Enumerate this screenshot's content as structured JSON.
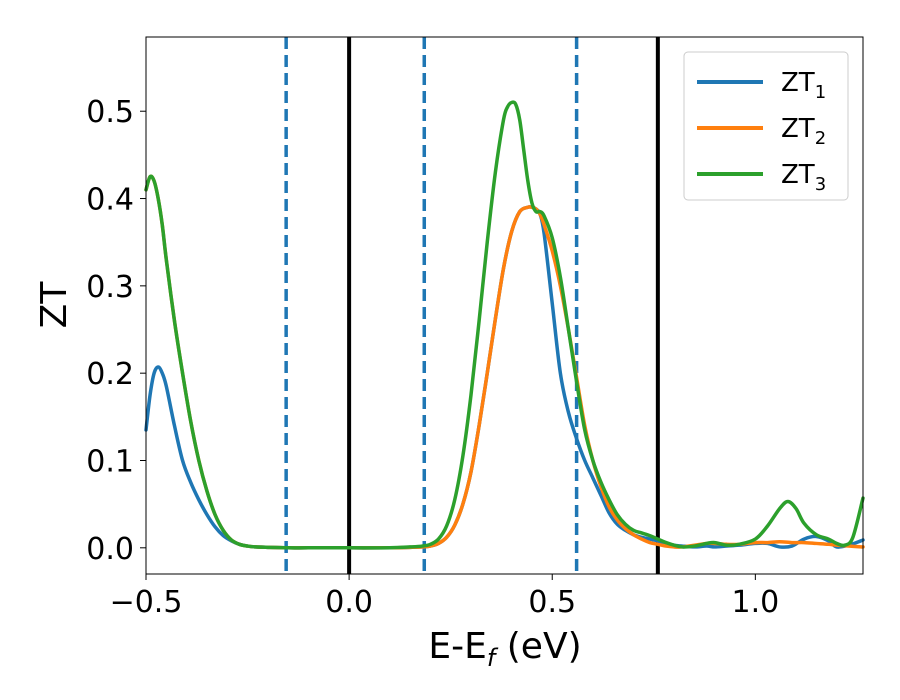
{
  "chart_data": {
    "type": "line",
    "xlabel_main": "E-E",
    "xlabel_sub": "f",
    "xlabel_unit": " (eV)",
    "ylabel": "ZT",
    "xlim": [
      -0.5,
      1.265
    ],
    "ylim": [
      -0.03,
      0.585
    ],
    "grid": false,
    "legend_placement": "top-right",
    "x_ticks": [
      {
        "value": -0.5,
        "label": "−0.5"
      },
      {
        "value": 0.0,
        "label": "0.0"
      },
      {
        "value": 0.5,
        "label": "0.5"
      },
      {
        "value": 1.0,
        "label": "1.0"
      }
    ],
    "y_ticks": [
      {
        "value": 0.0,
        "label": "0.0"
      },
      {
        "value": 0.1,
        "label": "0.1"
      },
      {
        "value": 0.2,
        "label": "0.2"
      },
      {
        "value": 0.3,
        "label": "0.3"
      },
      {
        "value": 0.4,
        "label": "0.4"
      },
      {
        "value": 0.5,
        "label": "0.5"
      }
    ],
    "vlines": [
      {
        "x": 0.0,
        "style": "solid",
        "color": "#000000"
      },
      {
        "x": 0.76,
        "style": "solid",
        "color": "#000000"
      },
      {
        "x": -0.155,
        "style": "dashed",
        "color": "#1f77b4"
      },
      {
        "x": 0.185,
        "style": "dashed",
        "color": "#1f77b4"
      },
      {
        "x": 0.56,
        "style": "dashed",
        "color": "#1f77b4"
      }
    ],
    "series": [
      {
        "name": "ZT",
        "sub": "1",
        "color": "#1f77b4",
        "x": [
          -0.5,
          -0.49,
          -0.48,
          -0.47,
          -0.46,
          -0.45,
          -0.43,
          -0.41,
          -0.39,
          -0.37,
          -0.35,
          -0.33,
          -0.31,
          -0.29,
          -0.27,
          -0.25,
          -0.23,
          -0.2,
          -0.15,
          -0.1,
          0.0,
          0.1,
          0.15,
          0.18,
          0.2,
          0.22,
          0.24,
          0.26,
          0.28,
          0.3,
          0.32,
          0.34,
          0.36,
          0.38,
          0.4,
          0.42,
          0.44,
          0.45,
          0.46,
          0.47,
          0.48,
          0.5,
          0.52,
          0.54,
          0.56,
          0.58,
          0.6,
          0.62,
          0.64,
          0.66,
          0.68,
          0.7,
          0.72,
          0.74,
          0.76,
          0.78,
          0.8,
          0.82,
          0.85,
          0.88,
          0.9,
          0.93,
          0.96,
          1.0,
          1.03,
          1.06,
          1.09,
          1.12,
          1.15,
          1.18,
          1.2,
          1.23,
          1.26,
          1.265
        ],
        "y": [
          0.135,
          0.175,
          0.2,
          0.207,
          0.2,
          0.185,
          0.14,
          0.1,
          0.075,
          0.055,
          0.038,
          0.024,
          0.014,
          0.008,
          0.004,
          0.002,
          0.001,
          0.0005,
          0.0,
          0.0,
          0.0,
          0.0,
          0.0005,
          0.001,
          0.002,
          0.005,
          0.012,
          0.026,
          0.05,
          0.087,
          0.14,
          0.2,
          0.262,
          0.32,
          0.362,
          0.385,
          0.39,
          0.39,
          0.388,
          0.382,
          0.36,
          0.28,
          0.2,
          0.155,
          0.125,
          0.1,
          0.08,
          0.06,
          0.04,
          0.027,
          0.02,
          0.015,
          0.012,
          0.01,
          0.008,
          0.005,
          0.003,
          0.002,
          0.001,
          0.002,
          0.001,
          0.002,
          0.003,
          0.005,
          0.005,
          0.001,
          0.002,
          0.01,
          0.013,
          0.008,
          0.001,
          0.003,
          0.008,
          0.009
        ]
      },
      {
        "name": "ZT",
        "sub": "2",
        "color": "#ff7f0e",
        "x": [
          -0.5,
          -0.49,
          -0.48,
          -0.47,
          -0.46,
          -0.45,
          -0.43,
          -0.41,
          -0.39,
          -0.37,
          -0.35,
          -0.33,
          -0.31,
          -0.29,
          -0.27,
          -0.25,
          -0.23,
          -0.2,
          -0.15,
          -0.1,
          0.0,
          0.1,
          0.15,
          0.18,
          0.2,
          0.22,
          0.24,
          0.26,
          0.28,
          0.3,
          0.32,
          0.34,
          0.36,
          0.38,
          0.4,
          0.42,
          0.44,
          0.45,
          0.46,
          0.47,
          0.48,
          0.5,
          0.52,
          0.54,
          0.56,
          0.58,
          0.6,
          0.62,
          0.64,
          0.66,
          0.68,
          0.7,
          0.72,
          0.74,
          0.76,
          0.78,
          0.8,
          0.82,
          0.85,
          0.88,
          0.9,
          0.93,
          0.96,
          1.0,
          1.03,
          1.06,
          1.09,
          1.12,
          1.15,
          1.18,
          1.2,
          1.23,
          1.26,
          1.265
        ],
        "y": [
          0.41,
          0.425,
          0.42,
          0.4,
          0.37,
          0.33,
          0.26,
          0.2,
          0.145,
          0.1,
          0.065,
          0.038,
          0.02,
          0.009,
          0.004,
          0.002,
          0.001,
          0.0005,
          0.0,
          0.0,
          0.0,
          0.0,
          0.0005,
          0.001,
          0.002,
          0.005,
          0.012,
          0.026,
          0.05,
          0.087,
          0.14,
          0.2,
          0.262,
          0.32,
          0.362,
          0.385,
          0.39,
          0.39,
          0.388,
          0.382,
          0.37,
          0.34,
          0.3,
          0.25,
          0.195,
          0.14,
          0.1,
          0.07,
          0.047,
          0.032,
          0.022,
          0.015,
          0.01,
          0.006,
          0.004,
          0.002,
          0.001,
          0.001,
          0.003,
          0.005,
          0.005,
          0.004,
          0.004,
          0.006,
          0.006,
          0.007,
          0.006,
          0.006,
          0.005,
          0.004,
          0.003,
          0.002,
          0.001,
          0.001
        ]
      },
      {
        "name": "ZT",
        "sub": "3",
        "color": "#2ca02c",
        "x": [
          -0.5,
          -0.49,
          -0.48,
          -0.47,
          -0.46,
          -0.45,
          -0.43,
          -0.41,
          -0.39,
          -0.37,
          -0.35,
          -0.33,
          -0.31,
          -0.29,
          -0.27,
          -0.25,
          -0.23,
          -0.2,
          -0.15,
          -0.1,
          0.0,
          0.1,
          0.15,
          0.18,
          0.2,
          0.22,
          0.24,
          0.26,
          0.28,
          0.3,
          0.32,
          0.34,
          0.36,
          0.38,
          0.39,
          0.4,
          0.41,
          0.42,
          0.43,
          0.44,
          0.45,
          0.46,
          0.47,
          0.48,
          0.5,
          0.52,
          0.54,
          0.56,
          0.58,
          0.6,
          0.62,
          0.64,
          0.66,
          0.68,
          0.7,
          0.72,
          0.74,
          0.76,
          0.78,
          0.8,
          0.82,
          0.85,
          0.88,
          0.9,
          0.93,
          0.96,
          1.0,
          1.03,
          1.06,
          1.08,
          1.1,
          1.12,
          1.15,
          1.18,
          1.2,
          1.22,
          1.24,
          1.265
        ],
        "y": [
          0.41,
          0.425,
          0.42,
          0.4,
          0.37,
          0.33,
          0.26,
          0.2,
          0.145,
          0.1,
          0.065,
          0.038,
          0.02,
          0.009,
          0.004,
          0.002,
          0.001,
          0.0005,
          0.0,
          0.0,
          0.0,
          0.0,
          0.001,
          0.002,
          0.004,
          0.01,
          0.025,
          0.055,
          0.105,
          0.175,
          0.26,
          0.35,
          0.43,
          0.49,
          0.505,
          0.51,
          0.508,
          0.49,
          0.455,
          0.42,
          0.395,
          0.385,
          0.385,
          0.38,
          0.355,
          0.31,
          0.25,
          0.19,
          0.135,
          0.1,
          0.075,
          0.055,
          0.038,
          0.027,
          0.02,
          0.017,
          0.014,
          0.01,
          0.006,
          0.003,
          0.001,
          0.002,
          0.005,
          0.006,
          0.003,
          0.004,
          0.01,
          0.025,
          0.045,
          0.053,
          0.045,
          0.028,
          0.015,
          0.01,
          0.005,
          0.003,
          0.012,
          0.057
        ]
      }
    ]
  }
}
